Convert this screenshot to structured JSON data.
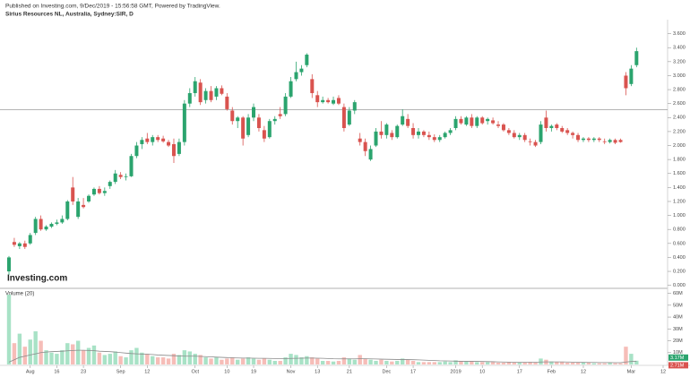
{
  "chart_data": {
    "type": "candlestick",
    "subtitle": "Published on Investing.com, 9/Dec/2019 - 15:56:58 GMT, Powered by TradingView.",
    "title": "Sirius Resources NL, Australia, Sydney:SIR, D",
    "watermark": "Investing.com",
    "volume_title": "Volume (20)",
    "up_color": "#2ba46e",
    "down_color": "#d9534f",
    "volume_up_color": "#a8e2c6",
    "volume_down_color": "#f6bdb8",
    "ma_color": "#8a8a8a",
    "price_line": 2.51,
    "ylim": [
      -0.03,
      3.8
    ],
    "yticks": [
      {
        "value": 0,
        "label": "0.000"
      },
      {
        "value": 0.2,
        "label": "0.200"
      },
      {
        "value": 0.4,
        "label": "0.400"
      },
      {
        "value": 0.6,
        "label": "0.600"
      },
      {
        "value": 0.8,
        "label": "0.800"
      },
      {
        "value": 1,
        "label": "1.000"
      },
      {
        "value": 1.2,
        "label": "1.200"
      },
      {
        "value": 1.4,
        "label": "1.400"
      },
      {
        "value": 1.6,
        "label": "1.600"
      },
      {
        "value": 1.8,
        "label": "1.800"
      },
      {
        "value": 2,
        "label": "2.000"
      },
      {
        "value": 2.2,
        "label": "2.200"
      },
      {
        "value": 2.4,
        "label": "2.400"
      },
      {
        "value": 2.6,
        "label": "2.600"
      },
      {
        "value": 2.8,
        "label": "2.800"
      },
      {
        "value": 3,
        "label": "3.000"
      },
      {
        "value": 3.2,
        "label": "3.200"
      },
      {
        "value": 3.4,
        "label": "3.400"
      },
      {
        "value": 3.6,
        "label": "3.600"
      }
    ],
    "volume_ylim": [
      0,
      65
    ],
    "volume_yticks": [
      {
        "value": 10,
        "label": "10M"
      },
      {
        "value": 20,
        "label": "20M"
      },
      {
        "value": 30,
        "label": "30M"
      },
      {
        "value": 40,
        "label": "40M"
      },
      {
        "value": 50,
        "label": "50M"
      },
      {
        "value": 60,
        "label": "60M"
      }
    ],
    "volume_last_label": "3.17M",
    "volume_ma_last_label": "2.71M",
    "categories": [
      null,
      null,
      null,
      null,
      "Aug",
      null,
      null,
      null,
      null,
      "16",
      null,
      null,
      null,
      null,
      "23",
      null,
      null,
      null,
      null,
      null,
      null,
      "Sep",
      null,
      null,
      null,
      null,
      "12",
      null,
      null,
      null,
      null,
      null,
      null,
      null,
      null,
      "Oct",
      null,
      null,
      null,
      null,
      null,
      "10",
      null,
      null,
      null,
      null,
      "19",
      null,
      null,
      null,
      null,
      null,
      null,
      "Nov",
      null,
      null,
      null,
      null,
      "13",
      null,
      null,
      null,
      null,
      null,
      "21",
      null,
      null,
      null,
      null,
      null,
      null,
      "Dec",
      null,
      null,
      null,
      null,
      "17",
      null,
      null,
      null,
      null,
      null,
      null,
      null,
      "2019",
      null,
      null,
      null,
      null,
      "10",
      null,
      null,
      null,
      null,
      null,
      null,
      "17",
      null,
      null,
      null,
      null,
      null,
      "Feb",
      null,
      null,
      null,
      null,
      null,
      "12",
      null,
      null,
      null,
      null,
      null,
      null,
      null,
      null,
      "Mar",
      null,
      null,
      null,
      null,
      null,
      "12"
    ],
    "candles": [
      [
        0.2,
        0.42,
        0.15,
        0.4
      ],
      [
        0.62,
        0.68,
        0.55,
        0.58
      ],
      [
        0.56,
        0.62,
        0.52,
        0.6
      ],
      [
        0.6,
        0.64,
        0.52,
        0.55
      ],
      [
        0.6,
        0.75,
        0.58,
        0.72
      ],
      [
        0.75,
        0.98,
        0.72,
        0.95
      ],
      [
        0.95,
        1.0,
        0.78,
        0.8
      ],
      [
        0.8,
        0.86,
        0.78,
        0.84
      ],
      [
        0.84,
        0.9,
        0.82,
        0.88
      ],
      [
        0.88,
        0.94,
        0.86,
        0.9
      ],
      [
        0.9,
        1.0,
        0.88,
        0.95
      ],
      [
        0.95,
        1.22,
        0.93,
        1.2
      ],
      [
        1.4,
        1.55,
        1.15,
        1.2
      ],
      [
        0.98,
        1.25,
        0.95,
        1.2
      ],
      [
        1.15,
        1.25,
        1.1,
        1.12
      ],
      [
        1.2,
        1.3,
        1.18,
        1.28
      ],
      [
        1.3,
        1.4,
        1.28,
        1.38
      ],
      [
        1.38,
        1.42,
        1.3,
        1.32
      ],
      [
        1.32,
        1.4,
        1.28,
        1.35
      ],
      [
        1.42,
        1.5,
        1.38,
        1.48
      ],
      [
        1.48,
        1.65,
        1.45,
        1.6
      ],
      [
        1.58,
        1.62,
        1.52,
        1.55
      ],
      [
        1.55,
        1.6,
        1.5,
        1.56
      ],
      [
        1.56,
        1.88,
        1.55,
        1.85
      ],
      [
        1.85,
        2.05,
        1.82,
        2.0
      ],
      [
        2.02,
        2.12,
        1.95,
        2.08
      ],
      [
        2.1,
        2.18,
        2.02,
        2.05
      ],
      [
        2.05,
        2.15,
        2.0,
        2.12
      ],
      [
        2.12,
        2.15,
        2.05,
        2.08
      ],
      [
        2.1,
        2.14,
        2.04,
        2.06
      ],
      [
        2.05,
        2.08,
        1.98,
        2.0
      ],
      [
        2.02,
        2.1,
        1.75,
        1.85
      ],
      [
        1.88,
        2.1,
        1.85,
        2.05
      ],
      [
        2.05,
        2.65,
        2.0,
        2.6
      ],
      [
        2.6,
        2.82,
        2.55,
        2.75
      ],
      [
        2.75,
        2.98,
        2.7,
        2.92
      ],
      [
        2.9,
        2.95,
        2.58,
        2.62
      ],
      [
        2.65,
        2.82,
        2.6,
        2.78
      ],
      [
        2.78,
        2.85,
        2.62,
        2.65
      ],
      [
        2.7,
        2.85,
        2.65,
        2.82
      ],
      [
        2.82,
        2.86,
        2.72,
        2.74
      ],
      [
        2.7,
        2.75,
        2.5,
        2.52
      ],
      [
        2.5,
        2.55,
        2.3,
        2.35
      ],
      [
        2.35,
        2.42,
        2.25,
        2.4
      ],
      [
        2.4,
        2.42,
        2.0,
        2.1
      ],
      [
        2.15,
        2.45,
        2.12,
        2.4
      ],
      [
        2.4,
        2.6,
        2.35,
        2.55
      ],
      [
        2.4,
        2.45,
        2.2,
        2.25
      ],
      [
        2.22,
        2.28,
        2.05,
        2.1
      ],
      [
        2.12,
        2.38,
        2.1,
        2.35
      ],
      [
        2.35,
        2.42,
        2.3,
        2.38
      ],
      [
        2.45,
        2.55,
        2.38,
        2.42
      ],
      [
        2.45,
        2.75,
        2.42,
        2.7
      ],
      [
        2.7,
        2.98,
        2.68,
        2.92
      ],
      [
        2.95,
        3.2,
        2.92,
        3.05
      ],
      [
        3.05,
        3.15,
        3.0,
        3.1
      ],
      [
        3.15,
        3.32,
        3.12,
        3.3
      ],
      [
        2.95,
        3.02,
        2.68,
        2.75
      ],
      [
        2.72,
        2.78,
        2.55,
        2.62
      ],
      [
        2.62,
        2.7,
        2.6,
        2.65
      ],
      [
        2.65,
        2.68,
        2.6,
        2.62
      ],
      [
        2.6,
        2.7,
        2.58,
        2.65
      ],
      [
        2.68,
        2.72,
        2.58,
        2.6
      ],
      [
        2.55,
        2.6,
        2.2,
        2.25
      ],
      [
        2.3,
        2.55,
        2.28,
        2.5
      ],
      [
        2.5,
        2.65,
        2.45,
        2.62
      ],
      [
        2.1,
        2.18,
        2.0,
        2.05
      ],
      [
        2.05,
        2.1,
        1.85,
        1.92
      ],
      [
        1.8,
        2.0,
        1.78,
        1.95
      ],
      [
        2.0,
        2.25,
        1.98,
        2.2
      ],
      [
        2.2,
        2.35,
        2.1,
        2.15
      ],
      [
        2.15,
        2.32,
        2.1,
        2.3
      ],
      [
        2.18,
        2.22,
        2.08,
        2.12
      ],
      [
        2.12,
        2.3,
        2.1,
        2.28
      ],
      [
        2.3,
        2.52,
        2.28,
        2.42
      ],
      [
        2.38,
        2.45,
        2.25,
        2.28
      ],
      [
        2.25,
        2.32,
        2.1,
        2.15
      ],
      [
        2.15,
        2.25,
        2.1,
        2.2
      ],
      [
        2.2,
        2.22,
        2.12,
        2.15
      ],
      [
        2.15,
        2.2,
        2.08,
        2.12
      ],
      [
        2.12,
        2.16,
        2.05,
        2.08
      ],
      [
        2.08,
        2.15,
        2.05,
        2.12
      ],
      [
        2.12,
        2.2,
        2.1,
        2.18
      ],
      [
        2.18,
        2.25,
        2.15,
        2.22
      ],
      [
        2.25,
        2.42,
        2.22,
        2.38
      ],
      [
        2.38,
        2.42,
        2.3,
        2.32
      ],
      [
        2.3,
        2.42,
        2.28,
        2.4
      ],
      [
        2.4,
        2.45,
        2.25,
        2.28
      ],
      [
        2.28,
        2.42,
        2.25,
        2.4
      ],
      [
        2.4,
        2.42,
        2.3,
        2.32
      ],
      [
        2.35,
        2.4,
        2.3,
        2.38
      ],
      [
        2.36,
        2.4,
        2.3,
        2.32
      ],
      [
        2.3,
        2.35,
        2.25,
        2.28
      ],
      [
        2.3,
        2.32,
        2.2,
        2.22
      ],
      [
        2.22,
        2.25,
        2.15,
        2.18
      ],
      [
        2.18,
        2.22,
        2.1,
        2.12
      ],
      [
        2.12,
        2.18,
        2.08,
        2.15
      ],
      [
        2.15,
        2.18,
        2.05,
        2.08
      ],
      [
        2.06,
        2.1,
        2.0,
        2.05
      ],
      [
        2.05,
        2.08,
        1.98,
        2.0
      ],
      [
        2.05,
        2.35,
        2.02,
        2.3
      ],
      [
        2.4,
        2.5,
        2.2,
        2.25
      ],
      [
        2.25,
        2.3,
        2.2,
        2.28
      ],
      [
        2.3,
        2.32,
        2.22,
        2.25
      ],
      [
        2.25,
        2.28,
        2.18,
        2.2
      ],
      [
        2.22,
        2.25,
        2.15,
        2.18
      ],
      [
        2.18,
        2.2,
        2.1,
        2.15
      ],
      [
        2.15,
        2.18,
        2.05,
        2.08
      ],
      [
        2.08,
        2.12,
        2.05,
        2.1
      ],
      [
        2.1,
        2.12,
        2.05,
        2.08
      ],
      [
        2.08,
        2.12,
        2.05,
        2.1
      ],
      [
        2.1,
        2.12,
        2.05,
        2.08
      ],
      [
        2.06,
        2.1,
        2.02,
        2.05
      ],
      [
        2.05,
        2.1,
        2.03,
        2.08
      ],
      [
        2.08,
        2.1,
        2.02,
        2.04
      ],
      [
        2.08,
        2.1,
        2.04,
        2.05
      ],
      [
        3.0,
        3.05,
        2.72,
        2.82
      ],
      [
        2.88,
        3.15,
        2.85,
        3.1
      ],
      [
        3.15,
        3.4,
        3.12,
        3.35
      ],
      null,
      null,
      null,
      null,
      null
    ],
    "volumes": [
      59,
      18,
      26,
      15,
      21,
      28,
      20,
      12,
      10,
      9,
      12,
      18,
      17,
      20,
      12,
      14,
      16,
      10,
      8,
      9,
      11,
      7,
      6,
      12,
      14,
      10,
      9,
      7,
      6,
      6,
      5,
      9,
      8,
      12,
      11,
      9,
      8,
      6,
      5,
      6,
      4,
      5,
      6,
      4,
      5,
      6,
      5,
      4,
      5,
      4,
      3,
      3,
      6,
      9,
      8,
      6,
      7,
      6,
      5,
      3,
      3,
      2.5,
      3,
      6,
      5,
      4,
      8,
      5,
      4,
      3,
      4,
      3,
      2.5,
      3,
      5,
      4,
      3,
      2,
      2,
      2,
      2,
      2,
      2.5,
      2,
      3.5,
      3,
      2.5,
      3,
      2,
      2,
      2,
      2,
      1.5,
      1.5,
      2,
      1.5,
      1.5,
      1.5,
      2,
      1.5,
      5,
      4,
      2.5,
      2,
      2,
      1.5,
      1.5,
      1.5,
      1.5,
      1.5,
      1,
      1,
      1,
      1.5,
      1,
      1,
      15,
      9,
      3.17,
      null,
      null,
      null,
      null,
      null
    ],
    "volume_ma": [
      2,
      4,
      6,
      7,
      8,
      9,
      10,
      10.5,
      10.8,
      11,
      11.2,
      11.5,
      11.8,
      12,
      12,
      11.8,
      11.6,
      11.2,
      11,
      10.8,
      10.5,
      10,
      9.6,
      9.2,
      9,
      8.8,
      8.6,
      8.4,
      8,
      7.8,
      7.6,
      7.4,
      7.2,
      7,
      7,
      7,
      6.8,
      6.6,
      6.4,
      6.2,
      6,
      5.8,
      5.6,
      5.5,
      5.4,
      5.4,
      5.3,
      5.2,
      5.2,
      5.1,
      5,
      5,
      5,
      5.1,
      5.2,
      5.3,
      5.4,
      5.4,
      5.3,
      5.2,
      5,
      4.8,
      4.7,
      4.7,
      4.7,
      4.7,
      4.8,
      4.8,
      4.7,
      4.6,
      4.5,
      4.4,
      4.3,
      4.2,
      4.2,
      4.1,
      4,
      3.9,
      3.7,
      3.5,
      3.3,
      3.1,
      3,
      2.9,
      2.8,
      2.7,
      2.7,
      2.6,
      2.6,
      2.5,
      2.4,
      2.3,
      2.2,
      2.1,
      2,
      2,
      2,
      1.9,
      1.9,
      1.9,
      2.1,
      2.2,
      2.2,
      2.2,
      2.2,
      2.1,
      2,
      1.9,
      1.8,
      1.7,
      1.7,
      1.6,
      1.6,
      1.6,
      1.5,
      1.5,
      2.1,
      2.5,
      2.71,
      null,
      null,
      null,
      null,
      null
    ]
  }
}
